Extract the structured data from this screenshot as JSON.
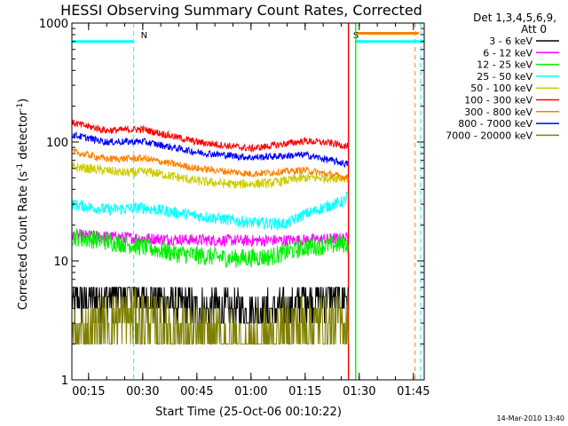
{
  "chart_data": {
    "type": "line",
    "title": "HESSI Observing Summary Count Rates, Corrected",
    "xlabel": "Start Time (25-Oct-06 00:10:22)",
    "ylabel": "Corrected Count Rate (s⁻¹ detector⁻¹)",
    "ylabel_parts": {
      "prefix": "Corrected Count Rate (s",
      "sup1": "-1",
      "middle": " detector",
      "sup2": "-1",
      "suffix": ")"
    },
    "y_scale": "log",
    "ylim": [
      1,
      1000
    ],
    "x_start": "00:10:22",
    "x_end": "01:48:00",
    "x_ticks": [
      "00:15",
      "00:30",
      "00:45",
      "01:00",
      "01:15",
      "01:30",
      "01:45"
    ],
    "y_tick_labels": [
      "1",
      "10",
      "100",
      "1000"
    ],
    "grid": false,
    "legend_header": [
      "Det 1,3,4,5,6,9,",
      "Att 0"
    ],
    "legend_position": "right",
    "footer_date": "14-Mar-2010 13:40",
    "series": [
      {
        "name": "3 - 6 keV",
        "color": "#000000",
        "x": [
          "00:10:22",
          "00:27:00",
          "00:40:00",
          "00:55:00",
          "01:12:00",
          "01:14:00",
          "01:27:00"
        ],
        "y": [
          4.5,
          5.5,
          4.2,
          3.8,
          3.8,
          5.0,
          5.0
        ],
        "noise": 0.18
      },
      {
        "name": "6 - 12 keV",
        "color": "#ff00ff",
        "x": [
          "00:10:22",
          "00:30:00",
          "00:45:00",
          "01:00:00",
          "01:15:00",
          "01:27:00"
        ],
        "y": [
          16.5,
          15.5,
          15.0,
          14.8,
          15.0,
          15.5
        ],
        "noise": 0.05
      },
      {
        "name": "12 - 25 keV",
        "color": "#00ee00",
        "x": [
          "00:10:22",
          "00:25:00",
          "00:40:00",
          "00:55:00",
          "01:05:00",
          "01:15:00",
          "01:27:00"
        ],
        "y": [
          16.0,
          14.0,
          11.5,
          10.5,
          10.8,
          13.0,
          14.0
        ],
        "noise": 0.08
      },
      {
        "name": "25 - 50 keV",
        "color": "#00ffff",
        "x": [
          "00:10:22",
          "00:20:00",
          "00:30:00",
          "00:45:00",
          "01:00:00",
          "01:10:00",
          "01:14:00",
          "01:20:00",
          "01:26:00",
          "01:27:00"
        ],
        "y": [
          30,
          27,
          28,
          24,
          21,
          20.5,
          24,
          28,
          32,
          38
        ],
        "noise": 0.05
      },
      {
        "name": "50 - 100 keV",
        "color": "#cccc00",
        "x": [
          "00:10:22",
          "00:25:00",
          "00:32:00",
          "00:45:00",
          "00:55:00",
          "01:05:00",
          "01:15:00",
          "01:27:00"
        ],
        "y": [
          62,
          55,
          56,
          47,
          44,
          45,
          50,
          50
        ],
        "noise": 0.04
      },
      {
        "name": "100 - 300 keV",
        "color": "#ff0000",
        "x": [
          "00:10:22",
          "00:20:00",
          "00:30:00",
          "00:45:00",
          "01:00:00",
          "01:15:00",
          "01:22:00",
          "01:27:00"
        ],
        "y": [
          145,
          125,
          128,
          100,
          88,
          102,
          98,
          92
        ],
        "noise": 0.03
      },
      {
        "name": "300 - 800 keV",
        "color": "#ff8000",
        "x": [
          "00:10:22",
          "00:20:00",
          "00:30:00",
          "00:45:00",
          "01:00:00",
          "01:15:00",
          "01:27:00"
        ],
        "y": [
          83,
          72,
          73,
          60,
          54,
          58,
          50
        ],
        "noise": 0.03
      },
      {
        "name": "800 - 7000 keV",
        "color": "#0000ff",
        "x": [
          "00:10:22",
          "00:20:00",
          "00:30:00",
          "00:45:00",
          "01:00:00",
          "01:15:00",
          "01:27:00"
        ],
        "y": [
          115,
          100,
          101,
          82,
          74,
          78,
          65
        ],
        "noise": 0.03
      },
      {
        "name": "7000 - 20000 keV",
        "color": "#808000",
        "x": [
          "00:10:22",
          "00:27:00",
          "00:45:00",
          "01:00:00",
          "01:14:00",
          "01:27:00"
        ],
        "y": [
          2.3,
          3.5,
          2.3,
          2.0,
          3.0,
          3.0
        ],
        "noise": 0.25
      }
    ],
    "annotations": [
      {
        "label": "N",
        "color": "#00ffff",
        "x_start": "00:10:22",
        "x_end": "00:27:30",
        "y": 700,
        "line_x": [
          "00:27:30"
        ]
      },
      {
        "label": "S",
        "color": "#ff8000",
        "x_start": "01:29:00",
        "x_end": "01:46:30",
        "y": 820,
        "line_x": [
          "01:45:30"
        ]
      },
      {
        "label": "",
        "color": "#00ffff",
        "x_start": "01:29:00",
        "x_end": "01:48:00",
        "y": 700,
        "line_x": [
          "01:47:00"
        ]
      }
    ],
    "event_lines": [
      {
        "color": "#00ff00",
        "x": "01:29:00",
        "style": "solid"
      },
      {
        "color": "#ff0000",
        "x": "01:27:00",
        "style": "solid"
      }
    ]
  }
}
